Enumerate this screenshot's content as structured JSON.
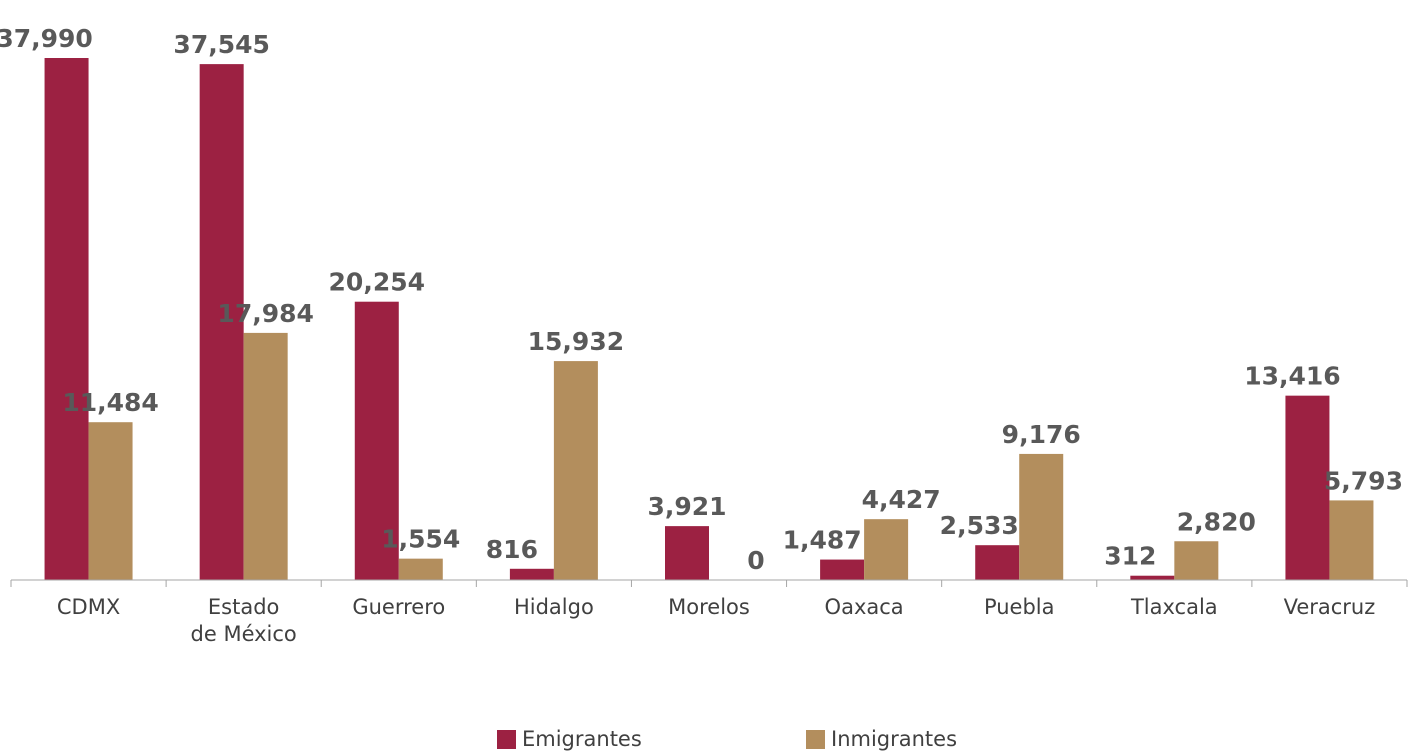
{
  "chart_data": {
    "type": "bar",
    "categories": [
      "CDMX",
      [
        "Estado",
        "de México"
      ],
      "Guerrero",
      "Hidalgo",
      "Morelos",
      "Oaxaca",
      "Puebla",
      "Tlaxcala",
      "Veracruz"
    ],
    "series": [
      {
        "name": "Emigrantes",
        "color": "#9c2142",
        "values": [
          37990,
          37545,
          20254,
          816,
          3921,
          1487,
          2533,
          312,
          13416
        ],
        "labels": [
          "37,990",
          "37,545",
          "20,254",
          "816",
          "3,921",
          "1,487",
          "2,533",
          "312",
          "13,416"
        ]
      },
      {
        "name": "Inmigrantes",
        "color": "#b38e5d",
        "values": [
          11484,
          17984,
          1554,
          15932,
          0,
          4427,
          9176,
          2820,
          5793
        ],
        "labels": [
          "11,484",
          "17,984",
          "1,554",
          "15,932",
          "0",
          "4,427",
          "9,176",
          "2,820",
          "5,793"
        ]
      }
    ],
    "ylim": [
      0,
      38000
    ],
    "grid": false,
    "legend_position": "bottom"
  }
}
